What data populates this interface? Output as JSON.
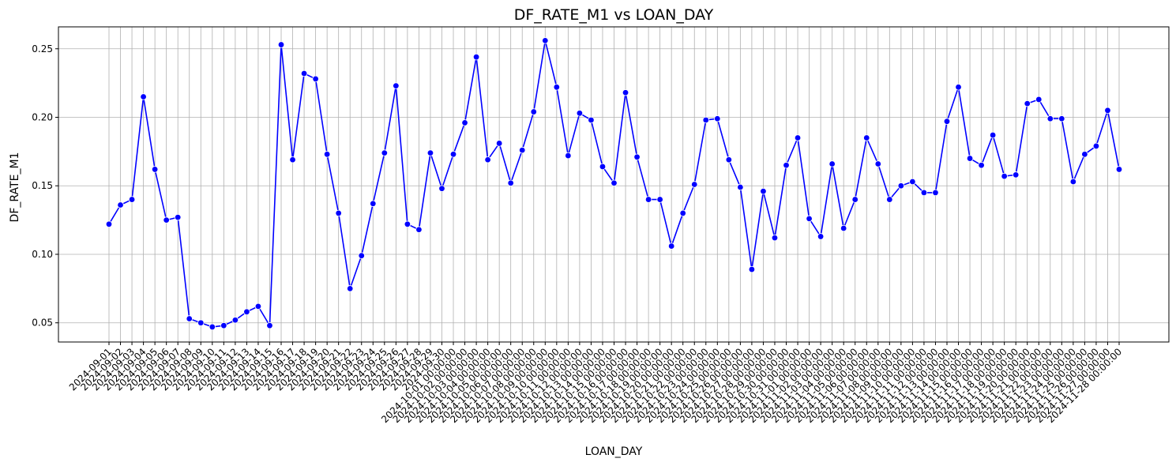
{
  "chart_data": {
    "type": "line",
    "title": "DF_RATE_M1 vs LOAN_DAY",
    "xlabel": "LOAN_DAY",
    "ylabel": "DF_RATE_M1",
    "ylim": [
      0.036,
      0.266
    ],
    "yticks": [
      0.05,
      0.1,
      0.15,
      0.2,
      0.25
    ],
    "ytick_labels": [
      "0.05",
      "0.10",
      "0.15",
      "0.20",
      "0.25"
    ],
    "grid": true,
    "legend": "none",
    "colors": {
      "line": "#0000ff",
      "marker": "#0000ff",
      "grid": "#b0b0b0",
      "axes": "#000000"
    },
    "categories": [
      "2024-09-01",
      "2024-09-02",
      "2024-09-03",
      "2024-09-04",
      "2024-09-05",
      "2024-09-06",
      "2024-09-07",
      "2024-09-08",
      "2024-09-09",
      "2024-09-10",
      "2024-09-11",
      "2024-09-12",
      "2024-09-13",
      "2024-09-14",
      "2024-09-15",
      "2024-09-16",
      "2024-09-17",
      "2024-09-18",
      "2024-09-19",
      "2024-09-20",
      "2024-09-21",
      "2024-09-22",
      "2024-09-23",
      "2024-09-24",
      "2024-09-25",
      "2024-09-26",
      "2024-09-27",
      "2024-09-28",
      "2024-09-29",
      "2024-09-30",
      "2024-10-01 00:00:00",
      "2024-10-02 00:00:00",
      "2024-10-03 00:00:00",
      "2024-10-04 00:00:00",
      "2024-10-05 00:00:00",
      "2024-10-06 00:00:00",
      "2024-10-07 00:00:00",
      "2024-10-08 00:00:00",
      "2024-10-09 00:00:00",
      "2024-10-10 00:00:00",
      "2024-10-11 00:00:00",
      "2024-10-12 00:00:00",
      "2024-10-13 00:00:00",
      "2024-10-14 00:00:00",
      "2024-10-15 00:00:00",
      "2024-10-16 00:00:00",
      "2024-10-17 00:00:00",
      "2024-10-18 00:00:00",
      "2024-10-19 00:00:00",
      "2024-10-20 00:00:00",
      "2024-10-21 00:00:00",
      "2024-10-22 00:00:00",
      "2024-10-23 00:00:00",
      "2024-10-24 00:00:00",
      "2024-10-25 00:00:00",
      "2024-10-26 00:00:00",
      "2024-10-27 00:00:00",
      "2024-10-28 00:00:00",
      "2024-10-29 00:00:00",
      "2024-10-30 00:00:00",
      "2024-10-31 00:00:00",
      "2024-11-01 00:00:00",
      "2024-11-02 00:00:00",
      "2024-11-03 00:00:00",
      "2024-11-04 00:00:00",
      "2024-11-05 00:00:00",
      "2024-11-06 00:00:00",
      "2024-11-07 00:00:00",
      "2024-11-08 00:00:00",
      "2024-11-09 00:00:00",
      "2024-11-10 00:00:00",
      "2024-11-11 00:00:00",
      "2024-11-12 00:00:00",
      "2024-11-13 00:00:00",
      "2024-11-14 00:00:00",
      "2024-11-15 00:00:00",
      "2024-11-16 00:00:00",
      "2024-11-17 00:00:00",
      "2024-11-18 00:00:00",
      "2024-11-19 00:00:00",
      "2024-11-20 00:00:00",
      "2024-11-21 00:00:00",
      "2024-11-22 00:00:00",
      "2024-11-23 00:00:00",
      "2024-11-24 00:00:00",
      "2024-11-25 00:00:00",
      "2024-11-26 00:00:00",
      "2024-11-27 00:00:00",
      "2024-11-28 00:00:00"
    ],
    "series": [
      {
        "values": [
          0.122,
          0.136,
          0.14,
          0.215,
          0.162,
          0.125,
          0.127,
          0.053,
          0.05,
          0.047,
          0.048,
          0.052,
          0.058,
          0.062,
          0.048,
          0.253,
          0.169,
          0.232,
          0.228,
          0.173,
          0.13,
          0.075,
          0.099,
          0.137,
          0.174,
          0.223,
          0.122,
          0.118,
          0.174,
          0.148,
          0.173,
          0.196,
          0.244,
          0.169,
          0.181,
          0.152,
          0.176,
          0.204,
          0.256,
          0.222,
          0.172,
          0.203,
          0.198,
          0.164,
          0.152,
          0.218,
          0.171,
          0.14,
          0.14,
          0.106,
          0.13,
          0.151,
          0.198,
          0.199,
          0.169,
          0.149,
          0.089,
          0.146,
          0.112,
          0.165,
          0.185,
          0.126,
          0.113,
          0.166,
          0.119,
          0.14,
          0.185,
          0.166,
          0.14,
          0.15,
          0.153,
          0.145,
          0.145,
          0.197,
          0.222,
          0.17,
          0.165,
          0.187,
          0.157,
          0.158,
          0.21,
          0.213,
          0.199,
          0.199,
          0.153,
          0.173,
          0.179,
          0.205,
          0.162
        ]
      }
    ]
  }
}
